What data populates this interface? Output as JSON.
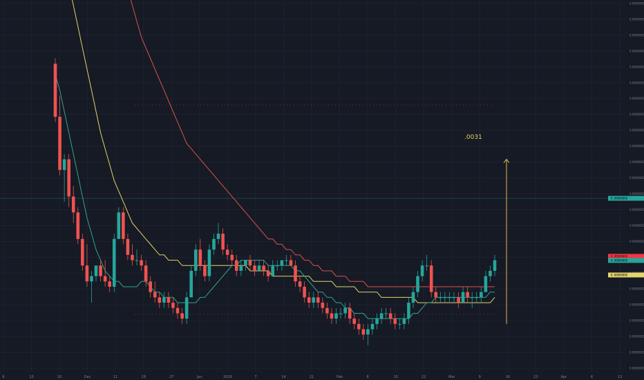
{
  "chart_data": {
    "type": "candlestick",
    "title": "",
    "annotation": ".0031",
    "x_tick_labels": [
      "6",
      "13",
      "20",
      "Dec",
      "11",
      "18",
      "27",
      "Jan",
      "2026",
      "7",
      "14",
      "21",
      "Feb",
      "8",
      "15",
      "22",
      "Mar",
      "9",
      "16",
      "23",
      "Apr",
      "6",
      "13"
    ],
    "y_tick_labels": [
      "0.00000000",
      "0.00000000",
      "0.00000000",
      "0.00000000",
      "0.00000000",
      "0.00000000",
      "0.00000000",
      "0.00000000",
      "0.00000000",
      "0.00000000",
      "0.00000000",
      "0.00000000",
      "0.00000000",
      "0.00000000",
      "0.00000000",
      "0.00000000",
      "0.00000000",
      "0.00000000",
      "0.00000000",
      "0.00000000",
      "0.00000000",
      "0.00000000",
      "0.00000000",
      "0.00000000"
    ],
    "price_tags": [
      {
        "label": "0.00000000",
        "color": "#26a69a"
      },
      {
        "label": "0.00000000",
        "color": "#f23645"
      },
      {
        "label": "0.00000000",
        "color": "#26a69a"
      },
      {
        "label": "0.00000000",
        "color": "#e3d46b"
      }
    ],
    "candles": [
      {
        "o": 0.0068,
        "h": 0.0069,
        "l": 0.0057,
        "c": 0.0058
      },
      {
        "o": 0.0058,
        "h": 0.0062,
        "l": 0.0047,
        "c": 0.0048
      },
      {
        "o": 0.0048,
        "h": 0.0051,
        "l": 0.0042,
        "c": 0.005
      },
      {
        "o": 0.005,
        "h": 0.0051,
        "l": 0.0041,
        "c": 0.0043
      },
      {
        "o": 0.0043,
        "h": 0.0045,
        "l": 0.0038,
        "c": 0.004
      },
      {
        "o": 0.004,
        "h": 0.0041,
        "l": 0.0034,
        "c": 0.0035
      },
      {
        "o": 0.0035,
        "h": 0.0036,
        "l": 0.0029,
        "c": 0.003
      },
      {
        "o": 0.003,
        "h": 0.0034,
        "l": 0.0026,
        "c": 0.0027
      },
      {
        "o": 0.0027,
        "h": 0.0029,
        "l": 0.0023,
        "c": 0.0028
      },
      {
        "o": 0.0028,
        "h": 0.003,
        "l": 0.0027,
        "c": 0.003
      },
      {
        "o": 0.003,
        "h": 0.0031,
        "l": 0.0027,
        "c": 0.0028
      },
      {
        "o": 0.0028,
        "h": 0.0031,
        "l": 0.0026,
        "c": 0.0027
      },
      {
        "o": 0.0027,
        "h": 0.0028,
        "l": 0.0025,
        "c": 0.0026
      },
      {
        "o": 0.0026,
        "h": 0.0036,
        "l": 0.0025,
        "c": 0.0035
      },
      {
        "o": 0.0035,
        "h": 0.0041,
        "l": 0.0035,
        "c": 0.004
      },
      {
        "o": 0.004,
        "h": 0.0041,
        "l": 0.0034,
        "c": 0.0035
      },
      {
        "o": 0.0035,
        "h": 0.0036,
        "l": 0.0031,
        "c": 0.0032
      },
      {
        "o": 0.0032,
        "h": 0.0034,
        "l": 0.003,
        "c": 0.0031
      },
      {
        "o": 0.0031,
        "h": 0.0033,
        "l": 0.003,
        "c": 0.0031
      },
      {
        "o": 0.0031,
        "h": 0.0032,
        "l": 0.0029,
        "c": 0.003
      },
      {
        "o": 0.003,
        "h": 0.0031,
        "l": 0.0026,
        "c": 0.0027
      },
      {
        "o": 0.0027,
        "h": 0.0028,
        "l": 0.0024,
        "c": 0.0025
      },
      {
        "o": 0.0025,
        "h": 0.0027,
        "l": 0.0023,
        "c": 0.0024
      },
      {
        "o": 0.0024,
        "h": 0.0025,
        "l": 0.0022,
        "c": 0.0023
      },
      {
        "o": 0.0023,
        "h": 0.0025,
        "l": 0.0022,
        "c": 0.0024
      },
      {
        "o": 0.0024,
        "h": 0.0025,
        "l": 0.0022,
        "c": 0.0023
      },
      {
        "o": 0.0023,
        "h": 0.0024,
        "l": 0.0021,
        "c": 0.0022
      },
      {
        "o": 0.0022,
        "h": 0.0023,
        "l": 0.002,
        "c": 0.0021
      },
      {
        "o": 0.0021,
        "h": 0.0022,
        "l": 0.0019,
        "c": 0.002
      },
      {
        "o": 0.002,
        "h": 0.0025,
        "l": 0.0019,
        "c": 0.0024
      },
      {
        "o": 0.0024,
        "h": 0.003,
        "l": 0.0024,
        "c": 0.0029
      },
      {
        "o": 0.0029,
        "h": 0.0034,
        "l": 0.0028,
        "c": 0.0033
      },
      {
        "o": 0.0033,
        "h": 0.0035,
        "l": 0.0029,
        "c": 0.003
      },
      {
        "o": 0.003,
        "h": 0.0031,
        "l": 0.0027,
        "c": 0.0028
      },
      {
        "o": 0.0028,
        "h": 0.0034,
        "l": 0.0027,
        "c": 0.0033
      },
      {
        "o": 0.0033,
        "h": 0.0036,
        "l": 0.0032,
        "c": 0.0035
      },
      {
        "o": 0.0035,
        "h": 0.0038,
        "l": 0.0034,
        "c": 0.0036
      },
      {
        "o": 0.0036,
        "h": 0.0037,
        "l": 0.0032,
        "c": 0.0033
      },
      {
        "o": 0.0033,
        "h": 0.0034,
        "l": 0.0031,
        "c": 0.0032
      },
      {
        "o": 0.0032,
        "h": 0.0033,
        "l": 0.003,
        "c": 0.0031
      },
      {
        "o": 0.0031,
        "h": 0.0032,
        "l": 0.0028,
        "c": 0.0029
      },
      {
        "o": 0.0029,
        "h": 0.0031,
        "l": 0.0028,
        "c": 0.003
      },
      {
        "o": 0.003,
        "h": 0.0031,
        "l": 0.0029,
        "c": 0.0031
      },
      {
        "o": 0.0031,
        "h": 0.0032,
        "l": 0.0029,
        "c": 0.003
      },
      {
        "o": 0.003,
        "h": 0.0031,
        "l": 0.0028,
        "c": 0.0029
      },
      {
        "o": 0.0029,
        "h": 0.0031,
        "l": 0.0029,
        "c": 0.003
      },
      {
        "o": 0.003,
        "h": 0.0031,
        "l": 0.0028,
        "c": 0.0029
      },
      {
        "o": 0.0029,
        "h": 0.003,
        "l": 0.0027,
        "c": 0.0028
      },
      {
        "o": 0.0028,
        "h": 0.0031,
        "l": 0.0028,
        "c": 0.003
      },
      {
        "o": 0.003,
        "h": 0.0031,
        "l": 0.0029,
        "c": 0.003
      },
      {
        "o": 0.003,
        "h": 0.0031,
        "l": 0.0029,
        "c": 0.0031
      },
      {
        "o": 0.0031,
        "h": 0.0032,
        "l": 0.003,
        "c": 0.0031
      },
      {
        "o": 0.0031,
        "h": 0.0032,
        "l": 0.003,
        "c": 0.003
      },
      {
        "o": 0.003,
        "h": 0.0031,
        "l": 0.0026,
        "c": 0.0027
      },
      {
        "o": 0.0027,
        "h": 0.0028,
        "l": 0.0025,
        "c": 0.0026
      },
      {
        "o": 0.0026,
        "h": 0.0027,
        "l": 0.0023,
        "c": 0.0024
      },
      {
        "o": 0.0024,
        "h": 0.0025,
        "l": 0.0022,
        "c": 0.0023
      },
      {
        "o": 0.0023,
        "h": 0.0025,
        "l": 0.0022,
        "c": 0.0024
      },
      {
        "o": 0.0024,
        "h": 0.0025,
        "l": 0.0022,
        "c": 0.0023
      },
      {
        "o": 0.0023,
        "h": 0.0024,
        "l": 0.0021,
        "c": 0.0022
      },
      {
        "o": 0.0022,
        "h": 0.0023,
        "l": 0.002,
        "c": 0.0021
      },
      {
        "o": 0.0021,
        "h": 0.0022,
        "l": 0.0019,
        "c": 0.002
      },
      {
        "o": 0.002,
        "h": 0.0022,
        "l": 0.0019,
        "c": 0.0021
      },
      {
        "o": 0.0021,
        "h": 0.0022,
        "l": 0.002,
        "c": 0.0021
      },
      {
        "o": 0.0021,
        "h": 0.0023,
        "l": 0.002,
        "c": 0.0022
      },
      {
        "o": 0.0022,
        "h": 0.0023,
        "l": 0.0019,
        "c": 0.002
      },
      {
        "o": 0.002,
        "h": 0.0021,
        "l": 0.0018,
        "c": 0.0019
      },
      {
        "o": 0.0019,
        "h": 0.002,
        "l": 0.0017,
        "c": 0.0018
      },
      {
        "o": 0.0018,
        "h": 0.0019,
        "l": 0.0016,
        "c": 0.0017
      },
      {
        "o": 0.0017,
        "h": 0.0019,
        "l": 0.0015,
        "c": 0.0018
      },
      {
        "o": 0.0018,
        "h": 0.002,
        "l": 0.0017,
        "c": 0.0019
      },
      {
        "o": 0.0019,
        "h": 0.0021,
        "l": 0.0018,
        "c": 0.002
      },
      {
        "o": 0.002,
        "h": 0.0022,
        "l": 0.0019,
        "c": 0.0021
      },
      {
        "o": 0.0021,
        "h": 0.0022,
        "l": 0.002,
        "c": 0.0021
      },
      {
        "o": 0.0021,
        "h": 0.0022,
        "l": 0.0019,
        "c": 0.002
      },
      {
        "o": 0.002,
        "h": 0.0021,
        "l": 0.0018,
        "c": 0.0019
      },
      {
        "o": 0.0019,
        "h": 0.002,
        "l": 0.0018,
        "c": 0.0019
      },
      {
        "o": 0.0019,
        "h": 0.0021,
        "l": 0.0018,
        "c": 0.002
      },
      {
        "o": 0.002,
        "h": 0.0024,
        "l": 0.0019,
        "c": 0.0023
      },
      {
        "o": 0.0023,
        "h": 0.0026,
        "l": 0.0022,
        "c": 0.0025
      },
      {
        "o": 0.0025,
        "h": 0.0029,
        "l": 0.0024,
        "c": 0.0028
      },
      {
        "o": 0.0028,
        "h": 0.0031,
        "l": 0.0027,
        "c": 0.003
      },
      {
        "o": 0.003,
        "h": 0.0032,
        "l": 0.0029,
        "c": 0.003
      },
      {
        "o": 0.003,
        "h": 0.0031,
        "l": 0.0024,
        "c": 0.0025
      },
      {
        "o": 0.0025,
        "h": 0.0026,
        "l": 0.0023,
        "c": 0.0024
      },
      {
        "o": 0.0024,
        "h": 0.0025,
        "l": 0.0023,
        "c": 0.0024
      },
      {
        "o": 0.0024,
        "h": 0.0025,
        "l": 0.0023,
        "c": 0.0024
      },
      {
        "o": 0.0024,
        "h": 0.0025,
        "l": 0.0023,
        "c": 0.0024
      },
      {
        "o": 0.0024,
        "h": 0.0025,
        "l": 0.0023,
        "c": 0.0024
      },
      {
        "o": 0.0024,
        "h": 0.0025,
        "l": 0.0022,
        "c": 0.0023
      },
      {
        "o": 0.0023,
        "h": 0.0026,
        "l": 0.0023,
        "c": 0.0025
      },
      {
        "o": 0.0025,
        "h": 0.0026,
        "l": 0.0023,
        "c": 0.0024
      },
      {
        "o": 0.0024,
        "h": 0.0025,
        "l": 0.0022,
        "c": 0.0024
      },
      {
        "o": 0.0024,
        "h": 0.0025,
        "l": 0.0023,
        "c": 0.0024
      },
      {
        "o": 0.0024,
        "h": 0.0026,
        "l": 0.0023,
        "c": 0.0025
      },
      {
        "o": 0.0025,
        "h": 0.0029,
        "l": 0.0025,
        "c": 0.0028
      },
      {
        "o": 0.0028,
        "h": 0.003,
        "l": 0.0027,
        "c": 0.0029
      },
      {
        "o": 0.0029,
        "h": 0.0032,
        "l": 0.0028,
        "c": 0.0031
      }
    ],
    "sma_fast": [
      0.0066,
      0.0063,
      0.0059,
      0.0055,
      0.0051,
      0.0047,
      0.0043,
      0.0039,
      0.0036,
      0.0033,
      0.0031,
      0.0029,
      0.0028,
      0.0027,
      0.0027,
      0.0026,
      0.0026,
      0.0026,
      0.0026,
      0.0027,
      0.0027,
      0.0026,
      0.0025,
      0.0025,
      0.0024,
      0.0024,
      0.0024,
      0.0023,
      0.0023,
      0.0023,
      0.0023,
      0.0023,
      0.0024,
      0.0024,
      0.0025,
      0.0026,
      0.0027,
      0.0028,
      0.0029,
      0.003,
      0.003,
      0.0031,
      0.0031,
      0.0031,
      0.0031,
      0.0031,
      0.0031,
      0.003,
      0.003,
      0.003,
      0.003,
      0.003,
      0.003,
      0.0029,
      0.0029,
      0.0028,
      0.0027,
      0.0026,
      0.0025,
      0.0025,
      0.0024,
      0.0024,
      0.0023,
      0.0023,
      0.0022,
      0.0022,
      0.0021,
      0.0021,
      0.0021,
      0.002,
      0.002,
      0.002,
      0.002,
      0.002,
      0.002,
      0.002,
      0.002,
      0.002,
      0.002,
      0.0021,
      0.0021,
      0.0022,
      0.0023,
      0.0023,
      0.0024,
      0.0024,
      0.0024,
      0.0024,
      0.0024,
      0.0024,
      0.0024,
      0.0024,
      0.0024,
      0.0024,
      0.0024,
      0.0024,
      0.0025,
      0.0025
    ],
    "sma_mid": [
      0.0095,
      0.0091,
      0.0087,
      0.0083,
      0.0079,
      0.0075,
      0.0071,
      0.0067,
      0.0063,
      0.0059,
      0.0055,
      0.0052,
      0.0049,
      0.0046,
      0.0044,
      0.0042,
      0.004,
      0.0038,
      0.0037,
      0.0036,
      0.0035,
      0.0034,
      0.0033,
      0.0032,
      0.0032,
      0.0031,
      0.0031,
      0.0031,
      0.003,
      0.003,
      0.003,
      0.003,
      0.003,
      0.003,
      0.003,
      0.003,
      0.003,
      0.003,
      0.003,
      0.003,
      0.003,
      0.003,
      0.003,
      0.0029,
      0.0029,
      0.0029,
      0.0029,
      0.0029,
      0.0028,
      0.0028,
      0.0028,
      0.0028,
      0.0028,
      0.0028,
      0.0028,
      0.0028,
      0.0028,
      0.0027,
      0.0027,
      0.0027,
      0.0027,
      0.0027,
      0.0026,
      0.0026,
      0.0026,
      0.0026,
      0.0026,
      0.0025,
      0.0025,
      0.0025,
      0.0025,
      0.0025,
      0.0024,
      0.0024,
      0.0024,
      0.0024,
      0.0024,
      0.0024,
      0.0024,
      0.0024,
      0.0023,
      0.0023,
      0.0023,
      0.0023,
      0.0023,
      0.0023,
      0.0023,
      0.0023,
      0.0023,
      0.0023,
      0.0023,
      0.0023,
      0.0023,
      0.0023,
      0.0023,
      0.0023,
      0.0023,
      0.0024
    ],
    "sma_slow": [
      0.013,
      0.0127,
      0.0124,
      0.0121,
      0.0118,
      0.0115,
      0.0112,
      0.0109,
      0.0106,
      0.0103,
      0.01,
      0.0097,
      0.0094,
      0.0091,
      0.0088,
      0.0085,
      0.0082,
      0.0079,
      0.0076,
      0.0073,
      0.0071,
      0.0069,
      0.0067,
      0.0065,
      0.0063,
      0.0061,
      0.0059,
      0.0057,
      0.0055,
      0.0053,
      0.0052,
      0.0051,
      0.005,
      0.0049,
      0.0048,
      0.0047,
      0.0046,
      0.0045,
      0.0044,
      0.0043,
      0.0042,
      0.0041,
      0.004,
      0.0039,
      0.0038,
      0.0037,
      0.0036,
      0.0035,
      0.0035,
      0.0034,
      0.0034,
      0.0033,
      0.0033,
      0.0032,
      0.0032,
      0.0031,
      0.0031,
      0.003,
      0.003,
      0.0029,
      0.0029,
      0.0029,
      0.0028,
      0.0028,
      0.0028,
      0.0027,
      0.0027,
      0.0027,
      0.0027,
      0.0026,
      0.0026,
      0.0026,
      0.0026,
      0.0026,
      0.0026,
      0.0026,
      0.0026,
      0.0026,
      0.0026,
      0.0026,
      0.0026,
      0.0026,
      0.0026,
      0.0026,
      0.0026,
      0.0026,
      0.0026,
      0.0026,
      0.0026,
      0.0026,
      0.0026,
      0.0026,
      0.0026,
      0.0026,
      0.0026,
      0.0026,
      0.0026,
      0.0026
    ],
    "target_from": 0.0019,
    "target_to": 0.005,
    "ylim": [
      0.001,
      0.008
    ],
    "colors": {
      "background": "#161a25",
      "grid": "#1f2431",
      "up": "#26a69a",
      "down": "#ef5350",
      "sma_fast": "#2fa58f",
      "sma_mid": "#e3d46b",
      "sma_slow": "#d9534f",
      "target_arrow": "#e3b34b",
      "annotation": "#e3d46b",
      "axis_text": "#7c8191"
    }
  }
}
